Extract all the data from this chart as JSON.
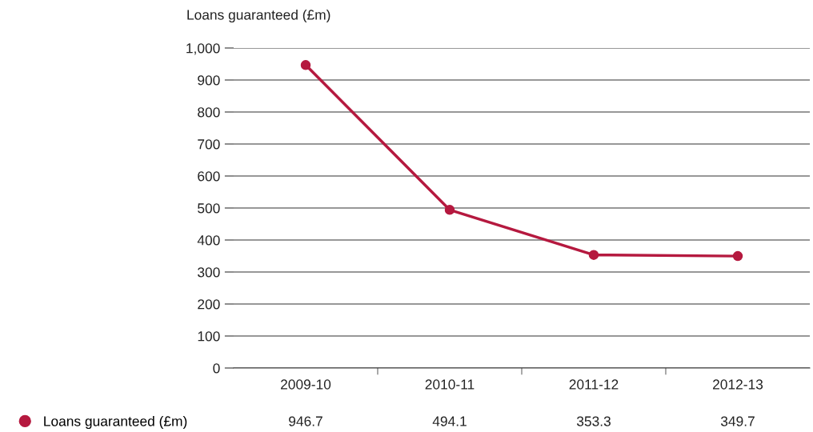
{
  "chart_data": {
    "type": "line",
    "ylabel": "Loans guaranteed (£m)",
    "categories": [
      "2009-10",
      "2010-11",
      "2011-12",
      "2012-13"
    ],
    "series": [
      {
        "name": "Loans guaranteed (£m)",
        "color": "#b5193f",
        "values": [
          946.7,
          494.1,
          353.3,
          349.7
        ]
      }
    ],
    "ylim": [
      0,
      1000
    ],
    "yticks": [
      0,
      100,
      200,
      300,
      400,
      500,
      600,
      700,
      800,
      900,
      {
        "value": 1000,
        "label": "1,000"
      }
    ],
    "grid": "y",
    "legend": "bottom",
    "marker": "circle",
    "line_style": "solid",
    "data_labels": true
  }
}
